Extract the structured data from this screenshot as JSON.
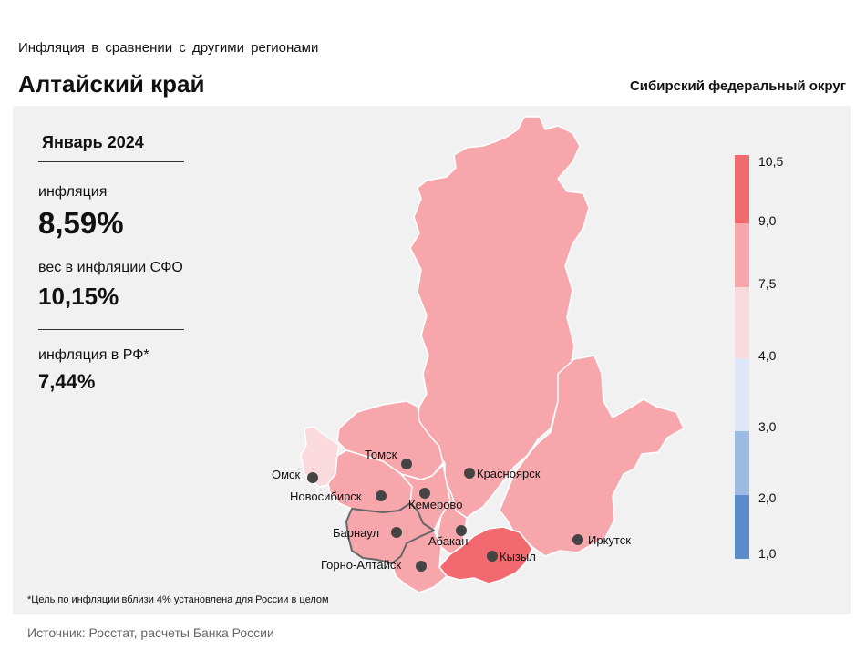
{
  "header": {
    "subtitle": "Инфляция  в сравнении  с другими  регионами",
    "title": "Алтайский край",
    "district": "Сибирский федеральный округ"
  },
  "stats": {
    "period": "Январь 2024",
    "inflation_label": "инфляция",
    "inflation_value": "8,59%",
    "weight_label": "вес в инфляции  СФО",
    "weight_value": "10,15%",
    "rf_label": "инфляция  в РФ*",
    "rf_value": "7,44%"
  },
  "cities": [
    {
      "name": "Омск"
    },
    {
      "name": "Томск"
    },
    {
      "name": "Красноярск"
    },
    {
      "name": "Новосибирск"
    },
    {
      "name": "Кемерово"
    },
    {
      "name": "Барнаул"
    },
    {
      "name": "Абакан"
    },
    {
      "name": "Кызыл"
    },
    {
      "name": "Иркутск"
    },
    {
      "name": "Горно-Алтайск"
    }
  ],
  "legend": {
    "ticks": [
      "10,5",
      "9,0",
      "7,5",
      "4,0",
      "3,0",
      "2,0",
      "1,0"
    ],
    "bands": [
      {
        "from": 9.0,
        "to": 10.5,
        "color": "#f26a6f"
      },
      {
        "from": 7.5,
        "to": 9.0,
        "color": "#f7a6ab"
      },
      {
        "from": 4.0,
        "to": 7.5,
        "color": "#fadadd"
      },
      {
        "from": 3.0,
        "to": 4.0,
        "color": "#dde6f5"
      },
      {
        "from": 2.0,
        "to": 3.0,
        "color": "#9dbbe0"
      },
      {
        "from": 1.0,
        "to": 2.0,
        "color": "#5b8cc9"
      }
    ]
  },
  "colors": {
    "high": "#f26a6f",
    "mid": "#f7a6ab",
    "low": "#fadadd",
    "border": "#ffffff",
    "highlight_border": "#666666"
  },
  "footnote": "*Цель по инфляции вблизи 4% установлена для России в целом",
  "source": "Источник: Росстат, расчеты Банка России"
}
